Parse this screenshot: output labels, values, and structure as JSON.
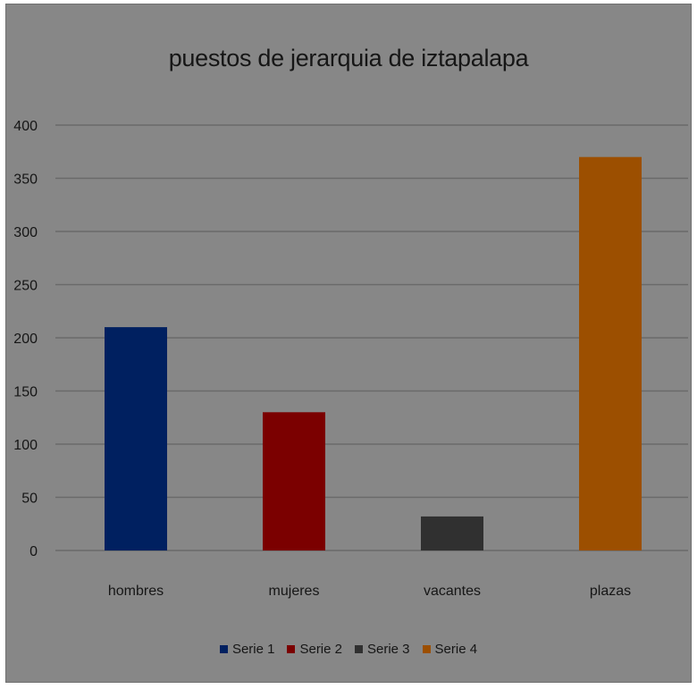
{
  "chart_data": {
    "type": "bar",
    "title": "puestos de jerarquia de iztapalapa",
    "categories": [
      "hombres",
      "mujeres",
      "vacantes",
      "plazas"
    ],
    "series": [
      {
        "name": "Serie 1",
        "color": "#002060",
        "values": [
          210,
          null,
          null,
          null
        ]
      },
      {
        "name": "Serie 2",
        "color": "#7b0000",
        "values": [
          null,
          130,
          null,
          null
        ]
      },
      {
        "name": "Serie 3",
        "color": "#303030",
        "values": [
          null,
          null,
          32,
          null
        ]
      },
      {
        "name": "Serie 4",
        "color": "#9c4f00",
        "values": [
          null,
          null,
          null,
          370
        ]
      }
    ],
    "ylim": [
      0,
      400
    ],
    "y_ticks": [
      0,
      50,
      100,
      150,
      200,
      250,
      300,
      350,
      400
    ],
    "xlabel": "",
    "ylabel": "",
    "grid": true,
    "legend_position": "bottom",
    "background_color": "#878787",
    "gridline_color": "#6a6a6a",
    "text_color": "#161616"
  }
}
